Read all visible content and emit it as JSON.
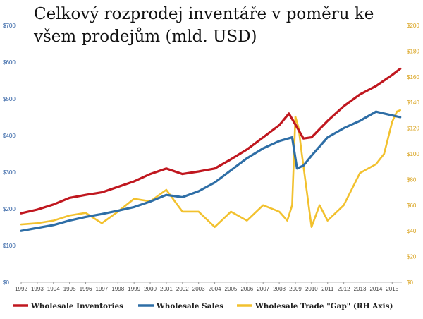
{
  "chart_data": {
    "type": "line",
    "title": "Celkový rozprodej inventáře v poměru ke všem prodejům (mld. USD)",
    "x_ticks": [
      "1992",
      "1993",
      "1994",
      "1995",
      "1996",
      "1997",
      "1998",
      "1999",
      "2000",
      "2001",
      "2002",
      "2003",
      "2004",
      "2005",
      "2006",
      "2007",
      "2008",
      "2009",
      "2010",
      "2011",
      "2012",
      "2013",
      "2014",
      "2015"
    ],
    "xlim": [
      1992,
      2015.6
    ],
    "left_axis": {
      "ticks": [
        "$0",
        "$100",
        "$200",
        "$300",
        "$400",
        "$500",
        "$600",
        "$700"
      ],
      "ylim": [
        0,
        700
      ]
    },
    "right_axis": {
      "ticks": [
        "$0",
        "$20",
        "$40",
        "$60",
        "$80",
        "$100",
        "$120",
        "$140",
        "$160",
        "$180",
        "$200"
      ],
      "ylim": [
        0,
        200
      ]
    },
    "grid": false,
    "legend_position": "bottom",
    "series": [
      {
        "name": "Wholesale Inventories",
        "color": "#c0171f",
        "axis": "left",
        "x": [
          1992,
          1993,
          1994,
          1995,
          1996,
          1997,
          1998,
          1999,
          2000,
          2001,
          2002,
          2003,
          2004,
          2005,
          2006,
          2007,
          2008,
          2008.6,
          2009,
          2009.5,
          2010,
          2011,
          2012,
          2013,
          2014,
          2015,
          2015.5
        ],
        "y": [
          188,
          198,
          212,
          230,
          238,
          245,
          260,
          275,
          295,
          310,
          295,
          302,
          310,
          335,
          362,
          395,
          428,
          460,
          430,
          392,
          395,
          440,
          480,
          512,
          535,
          565,
          582
        ]
      },
      {
        "name": "Wholesale Sales",
        "color": "#2e6ea6",
        "axis": "left",
        "x": [
          1992,
          1993,
          1994,
          1995,
          1996,
          1997,
          1998,
          1999,
          2000,
          2001,
          2002,
          2003,
          2004,
          2005,
          2006,
          2007,
          2008,
          2008.8,
          2009.1,
          2009.5,
          2010,
          2011,
          2012,
          2013,
          2014,
          2015,
          2015.5
        ],
        "y": [
          140,
          148,
          156,
          168,
          178,
          186,
          195,
          205,
          220,
          238,
          232,
          248,
          272,
          305,
          338,
          365,
          385,
          395,
          310,
          318,
          345,
          395,
          420,
          440,
          465,
          455,
          450
        ]
      },
      {
        "name": "Wholesale Trade \"Gap\" (RH Axis)",
        "color": "#f2c12e",
        "axis": "right",
        "x": [
          1992,
          1993,
          1994,
          1995,
          1996,
          1997,
          1998,
          1999,
          2000,
          2001,
          2002,
          2003,
          2004,
          2005,
          2006,
          2007,
          2008,
          2008.5,
          2008.8,
          2009,
          2009.2,
          2009.4,
          2010,
          2010.5,
          2011,
          2012,
          2013,
          2014,
          2014.5,
          2015,
          2015.3,
          2015.5
        ],
        "y": [
          45,
          46,
          48,
          52,
          54,
          46,
          55,
          65,
          63,
          72,
          55,
          55,
          43,
          55,
          48,
          60,
          55,
          48,
          60,
          129,
          120,
          100,
          43,
          60,
          48,
          60,
          85,
          92,
          100,
          125,
          133,
          134
        ]
      }
    ]
  }
}
